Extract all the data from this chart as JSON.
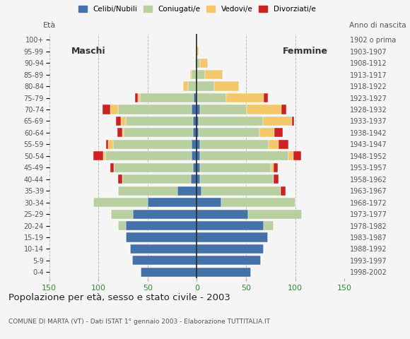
{
  "age_groups": [
    "0-4",
    "5-9",
    "10-14",
    "15-19",
    "20-24",
    "25-29",
    "30-34",
    "35-39",
    "40-44",
    "45-49",
    "50-54",
    "55-59",
    "60-64",
    "65-69",
    "70-74",
    "75-79",
    "80-84",
    "85-89",
    "90-94",
    "95-99",
    "100+"
  ],
  "birth_years": [
    "1998-2002",
    "1993-1997",
    "1988-1992",
    "1983-1987",
    "1978-1982",
    "1973-1977",
    "1968-1972",
    "1963-1967",
    "1958-1962",
    "1953-1957",
    "1948-1952",
    "1943-1947",
    "1938-1942",
    "1933-1937",
    "1928-1932",
    "1923-1927",
    "1918-1922",
    "1913-1917",
    "1908-1912",
    "1903-1907",
    "1902 o prima"
  ],
  "colors": {
    "celibe": "#4472a8",
    "coniugato": "#b8cfa0",
    "vedovo": "#f4c86a",
    "divorziato": "#cc2222"
  },
  "males": {
    "celibe": [
      57,
      66,
      68,
      72,
      72,
      65,
      50,
      20,
      6,
      4,
      5,
      5,
      4,
      4,
      5,
      3,
      0,
      0,
      0,
      0,
      0
    ],
    "coniugato": [
      0,
      0,
      0,
      0,
      8,
      22,
      55,
      60,
      70,
      80,
      88,
      80,
      70,
      68,
      75,
      55,
      9,
      5,
      2,
      0,
      0
    ],
    "vedovo": [
      0,
      0,
      0,
      0,
      0,
      0,
      0,
      0,
      0,
      0,
      2,
      5,
      2,
      5,
      8,
      2,
      5,
      2,
      0,
      0,
      0
    ],
    "divorziato": [
      0,
      0,
      0,
      0,
      0,
      0,
      0,
      0,
      4,
      4,
      10,
      2,
      5,
      5,
      8,
      3,
      0,
      0,
      0,
      0,
      0
    ]
  },
  "females": {
    "celibe": [
      55,
      65,
      68,
      72,
      68,
      52,
      25,
      5,
      3,
      3,
      3,
      3,
      2,
      2,
      3,
      0,
      0,
      0,
      0,
      0,
      0
    ],
    "coniugato": [
      0,
      0,
      0,
      0,
      10,
      55,
      75,
      80,
      75,
      72,
      90,
      70,
      62,
      65,
      48,
      30,
      18,
      8,
      3,
      0,
      0
    ],
    "vedovo": [
      0,
      0,
      0,
      0,
      0,
      0,
      0,
      0,
      0,
      3,
      5,
      10,
      15,
      30,
      35,
      38,
      25,
      18,
      8,
      2,
      0
    ],
    "divorziato": [
      0,
      0,
      0,
      0,
      0,
      0,
      0,
      5,
      5,
      4,
      8,
      10,
      8,
      2,
      5,
      4,
      0,
      0,
      0,
      0,
      0
    ]
  },
  "xlim": 150,
  "title": "Popolazione per età, sesso e stato civile - 2003",
  "subtitle": "COMUNE DI MARTA (VT) - Dati ISTAT 1° gennaio 2003 - Elaborazione TUTTITALIA.IT",
  "ylabel_left": "Età",
  "label_maschi": "Maschi",
  "label_femmine": "Femmine",
  "label_anno": "Anno di nascita",
  "legend_labels": [
    "Celibi/Nubili",
    "Coniugati/e",
    "Vedovi/e",
    "Divorziati/e"
  ],
  "bg_color": "#f5f5f5",
  "grid_color": "#bbbbbb",
  "xticks": [
    -150,
    -100,
    -50,
    0,
    50,
    100,
    150
  ],
  "xtick_labels": [
    "150",
    "100",
    "50",
    "0",
    "50",
    "100",
    "150"
  ]
}
